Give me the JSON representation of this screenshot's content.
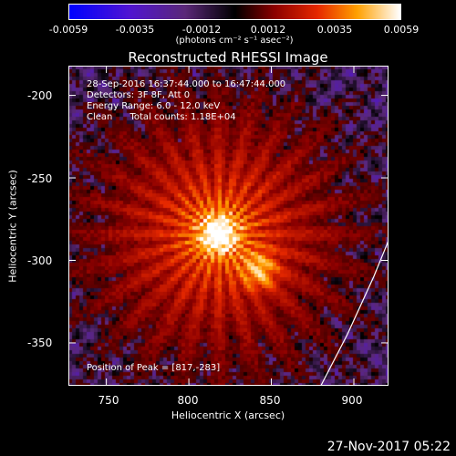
{
  "colorbar": {
    "ticks": [
      "-0.0059",
      "-0.0035",
      "-0.0012",
      "0.0012",
      "0.0035",
      "0.0059"
    ],
    "unit": "(photons cm⁻² s⁻¹ asec⁻²)",
    "range": [
      -0.0059,
      0.0059
    ]
  },
  "info": {
    "line1": "28-Sep-2016 16:37:44.000 to 16:47:44.000",
    "line2": "Detectors: 3F 8F, Att 0",
    "line3": "Energy Range: 6.0 - 12.0 keV",
    "line4": "Clean      Total counts: 1.18E+04"
  },
  "peak_text": "Position of Peak = [817,-283]",
  "timestamp": "27-Nov-2017 05:22",
  "chart_data": {
    "type": "heatmap",
    "title": "Reconstructed RHESSI Image",
    "xlabel": "Heliocentric X (arcsec)",
    "ylabel": "Heliocentric Y (arcsec)",
    "xlim": [
      727,
      921
    ],
    "ylim": [
      -376,
      -182
    ],
    "xticks": [
      "750",
      "800",
      "850",
      "900"
    ],
    "yticks": [
      "-200",
      "-250",
      "-300",
      "-350"
    ],
    "xtick_values": [
      750,
      800,
      850,
      900
    ],
    "ytick_values": [
      -200,
      -250,
      -300,
      -350
    ],
    "sources": [
      {
        "x": 817,
        "y": -283,
        "rel_intensity": 1.0
      },
      {
        "x": 842,
        "y": -305,
        "rel_intensity": 0.78
      }
    ],
    "limb": [
      [
        880,
        -376
      ],
      [
        896,
        -345
      ],
      [
        912,
        -310
      ],
      [
        921,
        -288
      ]
    ],
    "grid": false,
    "colormap": "hot-blue"
  }
}
